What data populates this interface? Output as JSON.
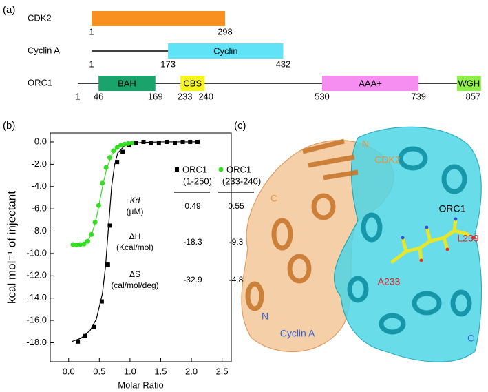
{
  "panel_labels": [
    "(a)",
    "(b)",
    "(c)"
  ],
  "domain_map": {
    "proteins": [
      {
        "name": "CDK2",
        "ticks": [
          1,
          298
        ],
        "domains": [
          {
            "start": 1,
            "end": 298,
            "color": "#f7901e"
          }
        ]
      },
      {
        "name": "Cyclin A",
        "ticks": [
          1,
          173,
          432
        ],
        "domains": [
          {
            "name": "Cyclin",
            "start": 173,
            "end": 432,
            "color": "#61e3f7"
          }
        ]
      },
      {
        "name": "ORC1",
        "ticks": [
          1,
          46,
          169,
          233,
          240,
          530,
          739,
          857
        ],
        "domains": [
          {
            "name": "BAH",
            "start": 46,
            "end": 169,
            "color": "#1aa36b"
          },
          {
            "name": "CBS",
            "start": 233,
            "end": 240,
            "color": "#f5f51d"
          },
          {
            "name": "AAA+",
            "start": 530,
            "end": 739,
            "color": "#f58ef0"
          },
          {
            "name": "WGH",
            "start": 813,
            "end": 857,
            "color": "#90ee4a"
          }
        ]
      }
    ]
  },
  "chart_data": {
    "type": "scatter",
    "x_label": "Molar Ratio",
    "y_label": "kcal mol⁻¹ of injectant",
    "xlim": [
      -0.3,
      2.65
    ],
    "ylim": [
      -19.7,
      0.8
    ],
    "xticks": [
      {
        "value": 0,
        "label": "0.0"
      },
      0.5,
      {
        "value": 1,
        "label": "1.0"
      },
      1.5,
      {
        "value": 2,
        "label": "2.0"
      },
      2.5
    ],
    "yticks": [
      {
        "value": 0,
        "label": "0.0"
      },
      {
        "value": -2,
        "label": "-2.0"
      },
      {
        "value": -4,
        "label": "-4.0"
      },
      {
        "value": -6,
        "label": "-6.0"
      },
      {
        "value": -8,
        "label": "-8.0"
      },
      {
        "value": -10,
        "label": "-10.0"
      },
      {
        "value": -12,
        "label": "-12.0"
      },
      {
        "value": -14,
        "label": "-14.0"
      },
      {
        "value": -16,
        "label": "-16.0"
      },
      {
        "value": -18,
        "label": "-18.0"
      }
    ],
    "series": [
      {
        "name": "ORC1",
        "variant": "(1-250)",
        "color": "#000000",
        "marker": "square",
        "x": [
          0.15,
          0.27,
          0.41,
          0.54,
          0.64,
          0.67,
          0.79,
          0.88,
          0.98,
          1.1,
          1.22,
          1.34,
          1.47,
          1.6,
          1.73,
          1.86,
          1.98,
          2.1
        ],
        "values": [
          -17.9,
          -17.4,
          -16.6,
          -14.3,
          -11.0,
          -7.5,
          -1.8,
          -0.9,
          -0.3,
          -0.1,
          0.0,
          -0.1,
          -0.1,
          0.0,
          -0.1,
          0.0,
          0.0,
          0.0
        ],
        "fit": {
          "x": [
            0.05,
            0.2,
            0.35,
            0.45,
            0.55,
            0.6,
            0.65,
            0.7,
            0.75,
            0.8,
            0.9,
            1.0,
            1.2,
            1.5,
            2.1
          ],
          "values": [
            -17.9,
            -17.6,
            -16.9,
            -15.9,
            -13.6,
            -11.2,
            -7.6,
            -4.0,
            -2.0,
            -1.0,
            -0.4,
            -0.15,
            -0.05,
            0.0,
            0.0
          ]
        }
      },
      {
        "name": "ORC1",
        "variant": "(233-240)",
        "color": "#33dd22",
        "marker": "circle",
        "x": [
          0.07,
          0.13,
          0.19,
          0.25,
          0.31,
          0.37,
          0.43,
          0.49,
          0.55,
          0.61,
          0.67,
          0.73,
          0.79,
          0.85,
          0.91,
          0.97,
          1.03
        ],
        "values": [
          -9.2,
          -9.25,
          -9.2,
          -9.15,
          -8.9,
          -8.3,
          -7.2,
          -5.7,
          -3.7,
          -2.3,
          -1.4,
          -0.8,
          -0.5,
          -0.3,
          -0.2,
          -0.15,
          -0.1
        ],
        "fit": {
          "x": [
            0.05,
            0.15,
            0.25,
            0.32,
            0.38,
            0.44,
            0.5,
            0.56,
            0.62,
            0.7,
            0.8,
            0.9,
            1.05
          ],
          "values": [
            -9.2,
            -9.2,
            -9.1,
            -8.8,
            -8.2,
            -7.1,
            -5.5,
            -3.8,
            -2.4,
            -1.2,
            -0.5,
            -0.2,
            -0.05
          ]
        }
      }
    ],
    "table": {
      "rows": [
        {
          "label": "Kd",
          "unit": "(μM)",
          "values": [
            "0.49",
            "0.55"
          ]
        },
        {
          "label": "ΔH",
          "unit": "(Kcal/mol)",
          "values": [
            "-18.3",
            "-9.3"
          ]
        },
        {
          "label": "ΔS",
          "unit": "(cal/mol/deg)",
          "values": [
            "-32.9",
            "-4.8"
          ]
        }
      ]
    }
  },
  "structure": {
    "labels": [
      {
        "text": "N",
        "color": "#e8913a"
      },
      {
        "text": "CDK2",
        "color": "#e8913a"
      },
      {
        "text": "C",
        "color": "#e8913a"
      },
      {
        "text": "ORC1",
        "color": "#000000"
      },
      {
        "text": "L239",
        "color": "#e02020"
      },
      {
        "text": "A233",
        "color": "#e02020"
      },
      {
        "text": "N",
        "color": "#3366dd"
      },
      {
        "text": "Cyclin A",
        "color": "#3366dd"
      },
      {
        "text": "C",
        "color": "#3366dd"
      }
    ]
  }
}
